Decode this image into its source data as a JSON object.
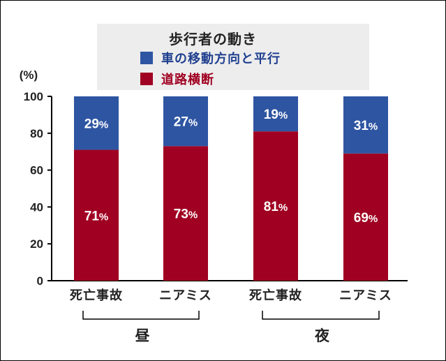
{
  "chart_data": {
    "type": "bar",
    "stacked": true,
    "legend_title": "歩行者の動き",
    "legend_position": "top",
    "ylabel": "(%)",
    "ylim": [
      0,
      100
    ],
    "yticks": [
      "0",
      "20",
      "40",
      "60",
      "80",
      "100"
    ],
    "grid": false,
    "categories": [
      "死亡事故",
      "ニアミス",
      "死亡事故",
      "ニアミス"
    ],
    "groups": [
      {
        "label": "昼",
        "categories": [
          0,
          1
        ]
      },
      {
        "label": "夜",
        "categories": [
          2,
          3
        ]
      }
    ],
    "series": [
      {
        "name": "道路横断",
        "color": "#a00021",
        "values": [
          71,
          73,
          81,
          69
        ],
        "labels": [
          "71%",
          "73%",
          "81%",
          "69%"
        ]
      },
      {
        "name": "車の移動方向と平行",
        "color": "#2e55a2",
        "values": [
          29,
          27,
          19,
          31
        ],
        "labels": [
          "29%",
          "27%",
          "19%",
          "31%"
        ]
      }
    ]
  },
  "legend_items": [
    {
      "label": "車の移動方向と平行",
      "color": "#2e55a2",
      "text_color": "#1f3f8f"
    },
    {
      "label": "道路横断",
      "color": "#a00021",
      "text_color": "#a00021"
    }
  ]
}
